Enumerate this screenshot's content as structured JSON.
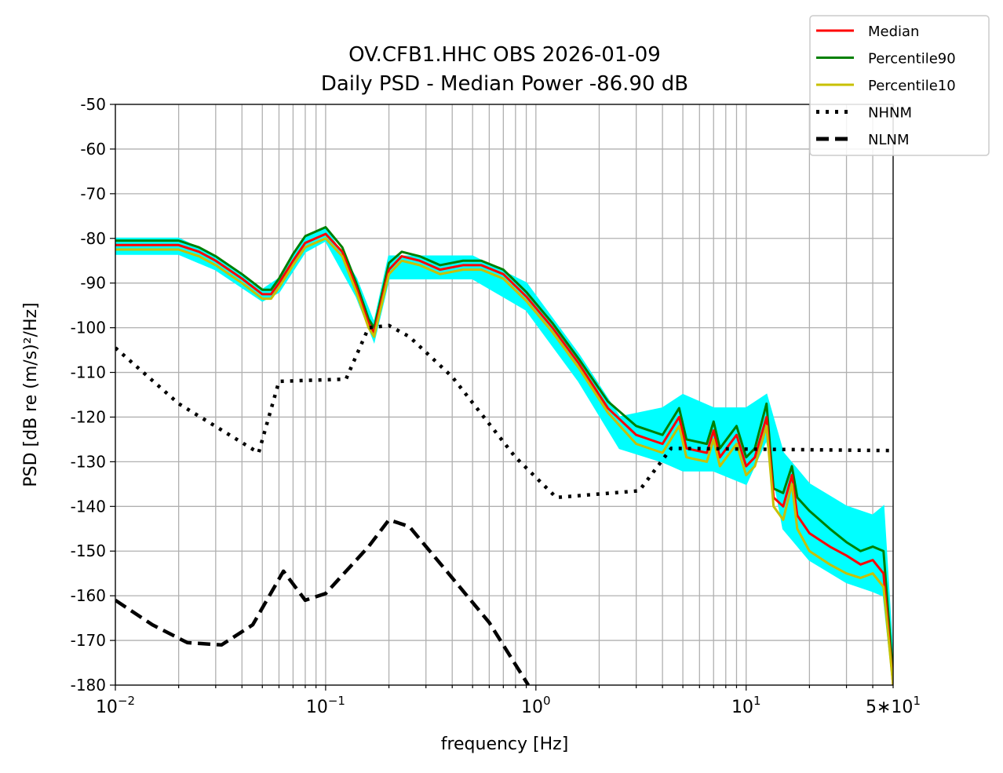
{
  "chart_data": {
    "type": "line",
    "title": "OV.CFB1.HHC OBS 2026-01-09",
    "subtitle": "Daily PSD - Median Power -86.90 dB",
    "xlabel": "frequency [Hz]",
    "ylabel": "PSD [dB re (m/s)²/Hz]",
    "xscale": "log",
    "xlim": [
      0.01,
      50
    ],
    "ylim": [
      -180,
      -50
    ],
    "grid": true,
    "legend_placement": "top-right outside",
    "x_tick_labels": [
      {
        "value": 0.01,
        "base": "10",
        "exp": "−2"
      },
      {
        "value": 0.1,
        "base": "10",
        "exp": "−1"
      },
      {
        "value": 1,
        "base": "10",
        "exp": "0"
      },
      {
        "value": 10,
        "base": "10",
        "exp": "1"
      },
      {
        "value": 50,
        "base": "5∗10",
        "exp": "1"
      }
    ],
    "y_ticks": [
      -50,
      -60,
      -70,
      -80,
      -90,
      -100,
      -110,
      -120,
      -130,
      -140,
      -150,
      -160,
      -170,
      -180
    ],
    "envelope": {
      "color": "#00ffff",
      "x": [
        0.01,
        0.02,
        0.03,
        0.05,
        0.06,
        0.08,
        0.1,
        0.14,
        0.17,
        0.2,
        0.3,
        0.5,
        0.9,
        1.6,
        2.5,
        4,
        5,
        7,
        10,
        12.5,
        15,
        20,
        30,
        40,
        45,
        50
      ],
      "upper": [
        -80,
        -80,
        -84,
        -91.5,
        -89,
        -80,
        -77.5,
        -89,
        -99,
        -84,
        -84,
        -84,
        -90,
        -106,
        -120,
        -118,
        -115,
        -118,
        -118,
        -115,
        -128,
        -135,
        -140,
        -142,
        -140,
        -175
      ],
      "lower": [
        -83.5,
        -83.5,
        -87,
        -94,
        -92,
        -83,
        -80.5,
        -93,
        -103,
        -89,
        -89,
        -89,
        -96,
        -112,
        -127,
        -130,
        -132,
        -132,
        -135,
        -125,
        -145,
        -152,
        -157,
        -159,
        -160,
        -180
      ]
    },
    "series": [
      {
        "name": "Median",
        "color": "#ff0000",
        "style": "solid",
        "x": [
          0.01,
          0.02,
          0.025,
          0.03,
          0.04,
          0.05,
          0.055,
          0.06,
          0.07,
          0.08,
          0.1,
          0.12,
          0.14,
          0.16,
          0.17,
          0.18,
          0.2,
          0.23,
          0.28,
          0.35,
          0.45,
          0.55,
          0.7,
          0.9,
          1.2,
          1.6,
          2.2,
          3,
          4,
          4.8,
          5.2,
          6.5,
          7,
          7.5,
          9,
          10,
          11,
          12.5,
          13.5,
          15,
          16.5,
          17.5,
          20,
          25,
          30,
          35,
          40,
          45,
          50
        ],
        "values": [
          -81.5,
          -81.5,
          -83,
          -85,
          -89,
          -92.5,
          -92.5,
          -90,
          -85,
          -81,
          -79,
          -83,
          -91,
          -99,
          -101,
          -96,
          -87,
          -84,
          -85,
          -87,
          -86,
          -86,
          -88,
          -93,
          -100,
          -108,
          -118,
          -124,
          -126,
          -120,
          -127,
          -128,
          -123,
          -129,
          -124,
          -131,
          -129,
          -120,
          -138,
          -140,
          -133,
          -142,
          -146,
          -149,
          -151,
          -153,
          -152,
          -155,
          -180
        ]
      },
      {
        "name": "Percentile90",
        "color": "#008000",
        "style": "solid",
        "x": [
          0.01,
          0.02,
          0.025,
          0.03,
          0.04,
          0.05,
          0.055,
          0.06,
          0.07,
          0.08,
          0.1,
          0.12,
          0.14,
          0.16,
          0.17,
          0.18,
          0.2,
          0.23,
          0.28,
          0.35,
          0.45,
          0.55,
          0.7,
          0.9,
          1.2,
          1.6,
          2.2,
          3,
          4,
          4.8,
          5.2,
          6.5,
          7,
          7.5,
          9,
          10,
          11,
          12.5,
          13.5,
          15,
          16.5,
          17.5,
          20,
          25,
          30,
          35,
          40,
          45,
          50
        ],
        "values": [
          -80.5,
          -80.5,
          -82,
          -84,
          -88,
          -91.5,
          -91.5,
          -89,
          -83.5,
          -79.5,
          -77.5,
          -82,
          -90,
          -98,
          -100,
          -95,
          -85.5,
          -83,
          -84,
          -86,
          -85,
          -85,
          -87,
          -92,
          -99,
          -107,
          -116.5,
          -122,
          -124,
          -118,
          -125,
          -126,
          -121,
          -127,
          -122,
          -129,
          -127,
          -117,
          -136,
          -137,
          -131,
          -138,
          -141,
          -145,
          -148,
          -150,
          -149,
          -150,
          -178
        ]
      },
      {
        "name": "Percentile10",
        "color": "#c8c000",
        "style": "solid",
        "x": [
          0.01,
          0.02,
          0.025,
          0.03,
          0.04,
          0.05,
          0.055,
          0.06,
          0.07,
          0.08,
          0.1,
          0.12,
          0.14,
          0.16,
          0.17,
          0.18,
          0.2,
          0.23,
          0.28,
          0.35,
          0.45,
          0.55,
          0.7,
          0.9,
          1.2,
          1.6,
          2.2,
          3,
          4,
          4.8,
          5.2,
          6.5,
          7,
          7.5,
          9,
          10,
          11,
          12.5,
          13.5,
          15,
          16.5,
          17.5,
          20,
          25,
          30,
          35,
          40,
          45,
          50
        ],
        "values": [
          -82.5,
          -82.5,
          -84,
          -86,
          -90,
          -93.5,
          -93.5,
          -91,
          -86,
          -82,
          -80,
          -84,
          -92,
          -100,
          -102,
          -97,
          -88,
          -85,
          -86,
          -88,
          -87,
          -87,
          -89,
          -94,
          -101,
          -109,
          -119,
          -126,
          -128,
          -122,
          -129,
          -130,
          -125,
          -131,
          -126,
          -133,
          -131,
          -122,
          -140,
          -143,
          -135,
          -145,
          -150,
          -153,
          -155,
          -156,
          -155,
          -158,
          -180
        ]
      },
      {
        "name": "NHNM",
        "color": "#000000",
        "style": "dotted",
        "x": [
          0.01,
          0.02,
          0.048,
          0.06,
          0.125,
          0.16,
          0.2,
          0.25,
          0.4,
          0.8,
          1.25,
          3.1,
          4.4,
          50
        ],
        "values": [
          -104.5,
          -117,
          -128,
          -112,
          -111.5,
          -100,
          -99.5,
          -102,
          -111,
          -129,
          -138,
          -136.5,
          -127,
          -127.5
        ]
      },
      {
        "name": "NLNM",
        "color": "#000000",
        "style": "dashed",
        "x": [
          0.01,
          0.015,
          0.022,
          0.032,
          0.045,
          0.063,
          0.08,
          0.1,
          0.16,
          0.2,
          0.25,
          0.4,
          0.6,
          0.92
        ],
        "values": [
          -161,
          -166.5,
          -170.5,
          -171,
          -166.5,
          -154.5,
          -161,
          -159.5,
          -149,
          -143,
          -144.5,
          -156,
          -166,
          -180
        ]
      }
    ]
  }
}
